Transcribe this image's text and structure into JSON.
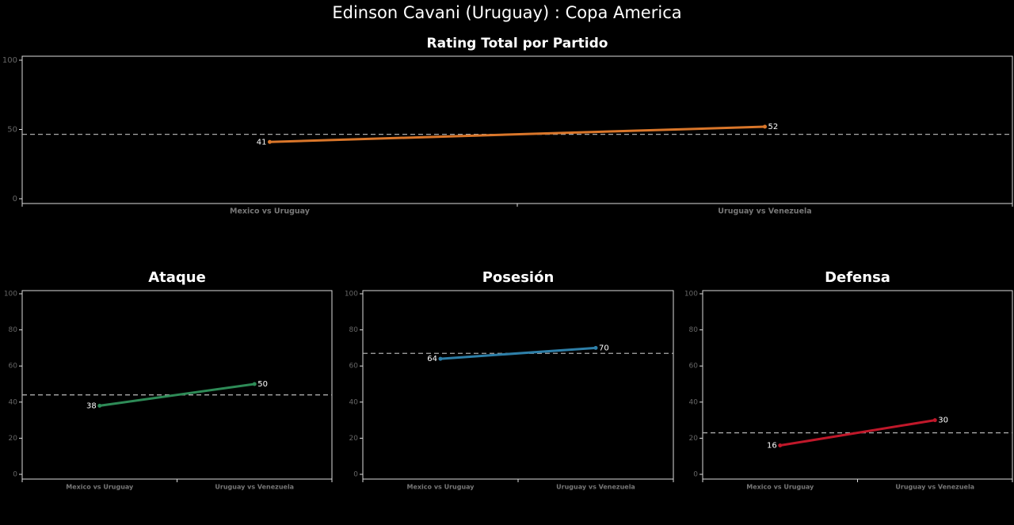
{
  "title": "Edinson Cavani (Uruguay) :  Copa  America",
  "chart_data": [
    {
      "type": "line",
      "title": "Rating Total por Partido",
      "categories": [
        "Mexico vs Uruguay",
        "Uruguay vs Venezuela"
      ],
      "values": [
        41,
        52
      ],
      "color": "#d9762a",
      "ylim": [
        0,
        100
      ],
      "yticks": [
        0,
        50,
        100
      ],
      "hline": 46.5
    },
    {
      "type": "line",
      "title": "Ataque",
      "categories": [
        "Mexico vs Uruguay",
        "Uruguay vs Venezuela"
      ],
      "values": [
        38,
        50
      ],
      "color": "#2e8b57",
      "ylim": [
        0,
        100
      ],
      "yticks": [
        0,
        20,
        40,
        60,
        80,
        100
      ],
      "hline": 44
    },
    {
      "type": "line",
      "title": "Posesión",
      "categories": [
        "Mexico vs Uruguay",
        "Uruguay vs Venezuela"
      ],
      "values": [
        64,
        70
      ],
      "color": "#2e7fa8",
      "ylim": [
        0,
        100
      ],
      "yticks": [
        0,
        20,
        40,
        60,
        80,
        100
      ],
      "hline": 67
    },
    {
      "type": "line",
      "title": "Defensa",
      "categories": [
        "Mexico vs Uruguay",
        "Uruguay vs Venezuela"
      ],
      "values": [
        16,
        30
      ],
      "color": "#c0182a",
      "ylim": [
        0,
        100
      ],
      "yticks": [
        0,
        20,
        40,
        60,
        80,
        100
      ],
      "hline": 23
    }
  ]
}
